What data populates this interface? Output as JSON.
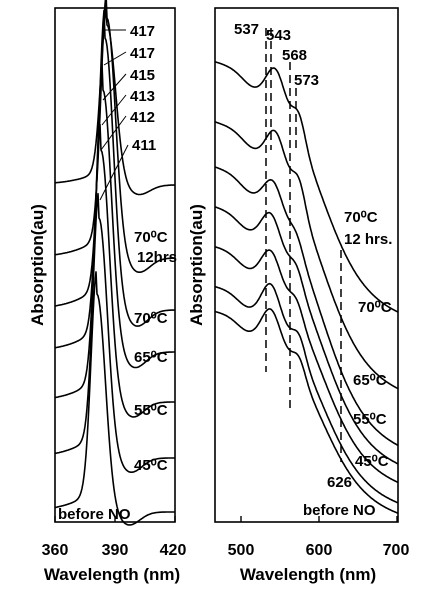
{
  "chart_data": [
    {
      "type": "line",
      "panel": "left",
      "xlabel": "Wavelength (nm)",
      "ylabel": "Absorption(au)",
      "xlim": [
        360,
        420
      ],
      "x_ticks": [
        "360",
        "390",
        "420"
      ],
      "series": [
        {
          "name": "before NO",
          "peak_nm": 381
        },
        {
          "name": "45⁰C",
          "peak_nm": 382
        },
        {
          "name": "55⁰C",
          "peak_nm": 383
        },
        {
          "name": "65⁰C",
          "peak_nm": 384
        },
        {
          "name": "70⁰C",
          "peak_nm": 385
        },
        {
          "name": "70⁰C 12hrs",
          "peak_nm": 386
        },
        {
          "name": "",
          "peak_nm": 386
        }
      ],
      "peak_labels": [
        "417",
        "417",
        "415",
        "413",
        "412",
        "411"
      ],
      "condition_labels": [
        "70⁰C",
        "12hrs",
        "70⁰C",
        "65⁰C",
        "55⁰C",
        "45⁰C",
        "before NO"
      ],
      "grid": false,
      "legend": "none"
    },
    {
      "type": "line",
      "panel": "right",
      "xlabel": "Wavelength (nm)",
      "ylabel": "Absorption(au)",
      "xlim": [
        465,
        700
      ],
      "x_ticks": [
        "500",
        "600",
        "700"
      ],
      "series": [
        {
          "name": "before NO",
          "q_bands_nm": [
            537,
            573
          ]
        },
        {
          "name": "45⁰C",
          "q_bands_nm": [
            537,
            573
          ]
        },
        {
          "name": "55⁰C",
          "q_bands_nm": [
            537,
            570
          ]
        },
        {
          "name": "65⁰C",
          "q_bands_nm": [
            537,
            570
          ]
        },
        {
          "name": "70⁰C",
          "q_bands_nm": [
            540,
            570
          ]
        },
        {
          "name": "70⁰C 12 hrs.",
          "q_bands_nm": [
            543,
            573
          ]
        },
        {
          "name": "",
          "q_bands_nm": [
            543,
            573
          ]
        }
      ],
      "vertical_markers_nm": [
        537,
        543,
        568,
        573,
        626
      ],
      "peak_labels": [
        "537",
        "543",
        "568",
        "573",
        "626"
      ],
      "condition_labels": [
        "70⁰C",
        "12 hrs.",
        "70⁰C",
        "65⁰C",
        "55⁰C",
        "45⁰C",
        "before NO"
      ],
      "grid": false,
      "legend": "none"
    }
  ]
}
